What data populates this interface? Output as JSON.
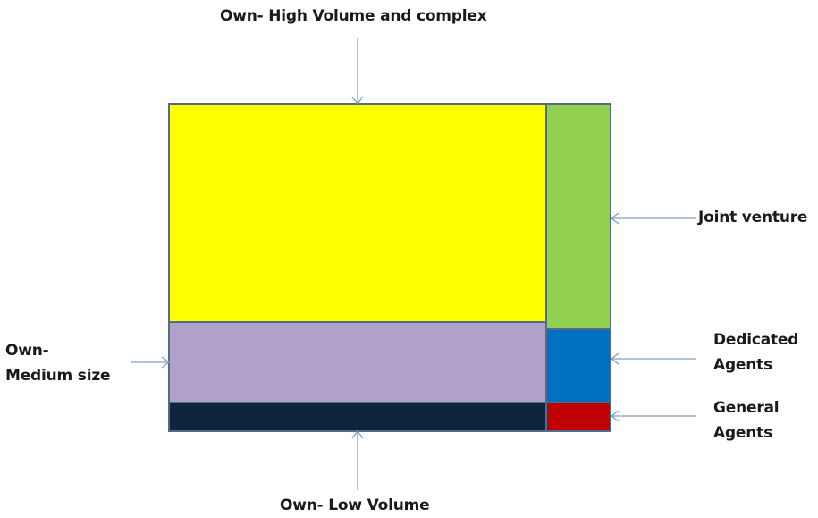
{
  "labels": {
    "top": "Own- High Volume and complex",
    "joint_venture": "Joint venture",
    "medium": [
      "Own-",
      "Medium size"
    ],
    "dedicated": [
      "Dedicated",
      "Agents"
    ],
    "general": [
      "General",
      "Agents"
    ],
    "bottom": "Own- Low Volume"
  },
  "colors": {
    "high_volume": "#ffff00",
    "joint_venture": "#92d050",
    "medium_size": "#b1a0c7",
    "dedicated_agents": "#0070c0",
    "low_volume": "#10243e",
    "general_agents": "#c00000",
    "border": "#4f6d8a",
    "arrow": "#7f9fc4"
  }
}
